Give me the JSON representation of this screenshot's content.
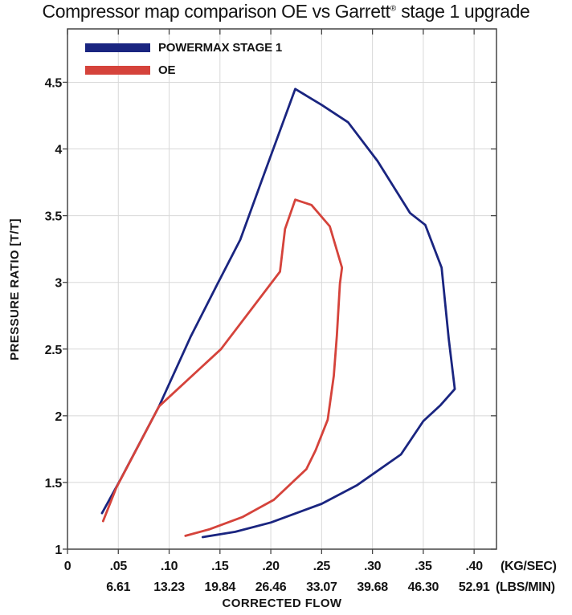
{
  "title": {
    "prefix": "Compressor map comparison OE vs Garrett",
    "registered": "®",
    "suffix": " stage 1 upgrade"
  },
  "chart_data": {
    "type": "line",
    "title": "Compressor map comparison OE vs Garrett® stage 1 upgrade",
    "xlabel": "CORRECTED FLOW",
    "ylabel": "PRESSURE RATIO [T/T]",
    "xlim": [
      0,
      0.422
    ],
    "ylim": [
      1,
      4.9
    ],
    "grid": true,
    "legend_position": "top-left",
    "x_ticks": {
      "values": [
        0,
        0.05,
        0.1,
        0.15,
        0.2,
        0.25,
        0.3,
        0.35,
        0.4
      ],
      "labels": [
        "0",
        ".05",
        ".10",
        ".15",
        ".20",
        ".25",
        ".30",
        ".35",
        ".40"
      ],
      "labels_secondary": [
        "",
        "6.61",
        "13.23",
        "19.84",
        "26.46",
        "33.07",
        "39.68",
        "46.30",
        "52.91"
      ],
      "unit_primary": "(KG/SEC)",
      "unit_secondary": "(LBS/MIN)"
    },
    "y_ticks": {
      "values": [
        1,
        1.5,
        2,
        2.5,
        3,
        3.5,
        4,
        4.5
      ],
      "labels": [
        "1",
        "1.5",
        "2",
        "2.5",
        "3",
        "3.5",
        "4",
        "4.5"
      ]
    },
    "series": [
      {
        "name": "POWERMAX STAGE 1",
        "color": "#1a2580",
        "points": [
          [
            0.034,
            1.27
          ],
          [
            0.052,
            1.52
          ],
          [
            0.09,
            2.07
          ],
          [
            0.121,
            2.59
          ],
          [
            0.147,
            2.98
          ],
          [
            0.17,
            3.32
          ],
          [
            0.19,
            3.74
          ],
          [
            0.224,
            4.45
          ],
          [
            0.25,
            4.33
          ],
          [
            0.276,
            4.2
          ],
          [
            0.305,
            3.91
          ],
          [
            0.337,
            3.52
          ],
          [
            0.352,
            3.43
          ],
          [
            0.368,
            3.11
          ],
          [
            0.375,
            2.58
          ],
          [
            0.381,
            2.2
          ],
          [
            0.367,
            2.08
          ],
          [
            0.35,
            1.96
          ],
          [
            0.328,
            1.71
          ],
          [
            0.285,
            1.48
          ],
          [
            0.25,
            1.34
          ],
          [
            0.2,
            1.2
          ],
          [
            0.165,
            1.13
          ],
          [
            0.133,
            1.09
          ]
        ]
      },
      {
        "name": "OE",
        "color": "#d5433b",
        "points": [
          [
            0.035,
            1.21
          ],
          [
            0.048,
            1.46
          ],
          [
            0.09,
            2.07
          ],
          [
            0.151,
            2.5
          ],
          [
            0.209,
            3.08
          ],
          [
            0.214,
            3.4
          ],
          [
            0.224,
            3.62
          ],
          [
            0.24,
            3.58
          ],
          [
            0.258,
            3.42
          ],
          [
            0.27,
            3.11
          ],
          [
            0.268,
            2.99
          ],
          [
            0.265,
            2.6
          ],
          [
            0.262,
            2.3
          ],
          [
            0.256,
            1.97
          ],
          [
            0.244,
            1.74
          ],
          [
            0.235,
            1.6
          ],
          [
            0.203,
            1.37
          ],
          [
            0.172,
            1.24
          ],
          [
            0.14,
            1.15
          ],
          [
            0.116,
            1.1
          ]
        ]
      }
    ],
    "colors": {
      "grid": "#d8d8d8",
      "axis": "#454545",
      "text": "#141414"
    }
  }
}
